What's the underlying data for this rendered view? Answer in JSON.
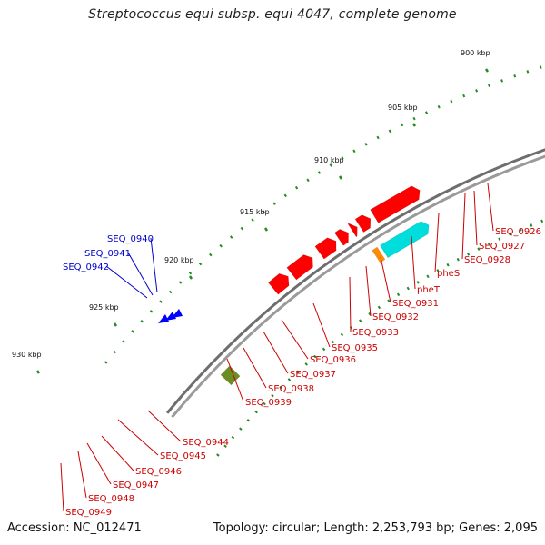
{
  "title": "Streptococcus equi subsp. equi 4047, complete genome",
  "accession": "Accession: NC_012471",
  "summary": "Topology: circular; Length: 2,253,793 bp; Genes: 2,095",
  "colors": {
    "backbone": "#808080",
    "cds": "#ff0000",
    "cds_light": "#f08080",
    "cyan": "#00dddd",
    "teal": "#00e6b0",
    "olive": "#6b8e23",
    "orange": "#ff8c00",
    "magenta": "#ff0090",
    "blue": "#0000ff",
    "tick": "#228b22",
    "red_label": "#cc0000",
    "blue_label": "#0000cc"
  },
  "scale": {
    "ticks": [
      "900 kbp",
      "905 kbp",
      "910 kbp",
      "915 kbp",
      "920 kbp",
      "925 kbp",
      "930 kbp"
    ]
  },
  "labels": {
    "red": [
      "SEQ_0926",
      "SEQ_0927",
      "SEQ_0928",
      "pheS",
      "pheT",
      "SEQ_0931",
      "SEQ_0932",
      "SEQ_0933",
      "SEQ_0935",
      "SEQ_0936",
      "SEQ_0937",
      "SEQ_0938",
      "SEQ_0939",
      "SEQ_0944",
      "SEQ_0945",
      "SEQ_0946",
      "SEQ_0947",
      "SEQ_0948",
      "SEQ_0949"
    ],
    "blue": [
      "SEQ_0940",
      "SEQ_0941",
      "SEQ_0942"
    ]
  }
}
